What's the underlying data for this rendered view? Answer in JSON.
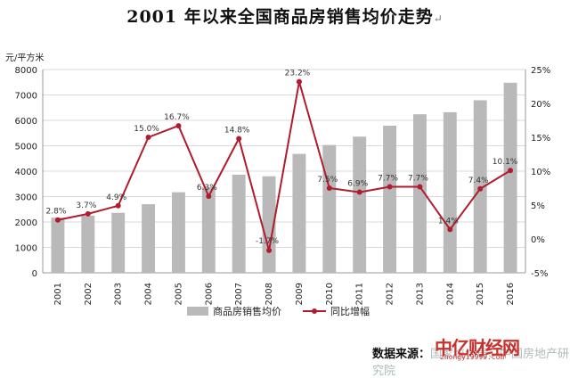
{
  "title": "2001 年以来全国商品房销售均价走势",
  "source_label": "数据来源：",
  "source_rest": "国家统计局、中国房地产研究院",
  "watermark": "中亿财经网",
  "watermark_sub": "zhongyi9999.com",
  "chart_data": {
    "type": "bar",
    "categories": [
      "2001",
      "2002",
      "2003",
      "2004",
      "2005",
      "2006",
      "2007",
      "2008",
      "2009",
      "2010",
      "2011",
      "2012",
      "2013",
      "2014",
      "2015",
      "2016"
    ],
    "y_left": {
      "label": "元/平方米",
      "min": 0,
      "max": 8000,
      "ticks": [
        0,
        1000,
        2000,
        3000,
        4000,
        5000,
        6000,
        7000,
        8000
      ]
    },
    "y_right": {
      "min": -5,
      "max": 25,
      "ticks": [
        "-5%",
        "0%",
        "5%",
        "10%",
        "15%",
        "20%",
        "25%"
      ]
    },
    "series": [
      {
        "name": "商品房销售均价",
        "kind": "bar",
        "axis": "left",
        "color": "#b9b9b9",
        "values": [
          2170,
          2250,
          2360,
          2700,
          3170,
          3370,
          3860,
          3800,
          4680,
          5030,
          5360,
          5790,
          6240,
          6320,
          6790,
          7480
        ]
      },
      {
        "name": "同比增幅",
        "kind": "line",
        "axis": "right",
        "color": "#b01c2e",
        "values": [
          2.8,
          3.7,
          4.9,
          15.0,
          16.7,
          6.3,
          14.8,
          -1.7,
          23.2,
          7.5,
          6.9,
          7.7,
          7.7,
          1.4,
          7.4,
          10.1
        ],
        "labels": [
          "2.8%",
          "3.7%",
          "4.9%",
          "15.0%",
          "16.7%",
          "6.3%",
          "14.8%",
          "-1.7%",
          "23.2%",
          "7.5%",
          "6.9%",
          "7.7%",
          "7.7%",
          "1.4%",
          "7.4%",
          "10.1%"
        ]
      }
    ],
    "grid": true,
    "legend_position": "bottom"
  }
}
